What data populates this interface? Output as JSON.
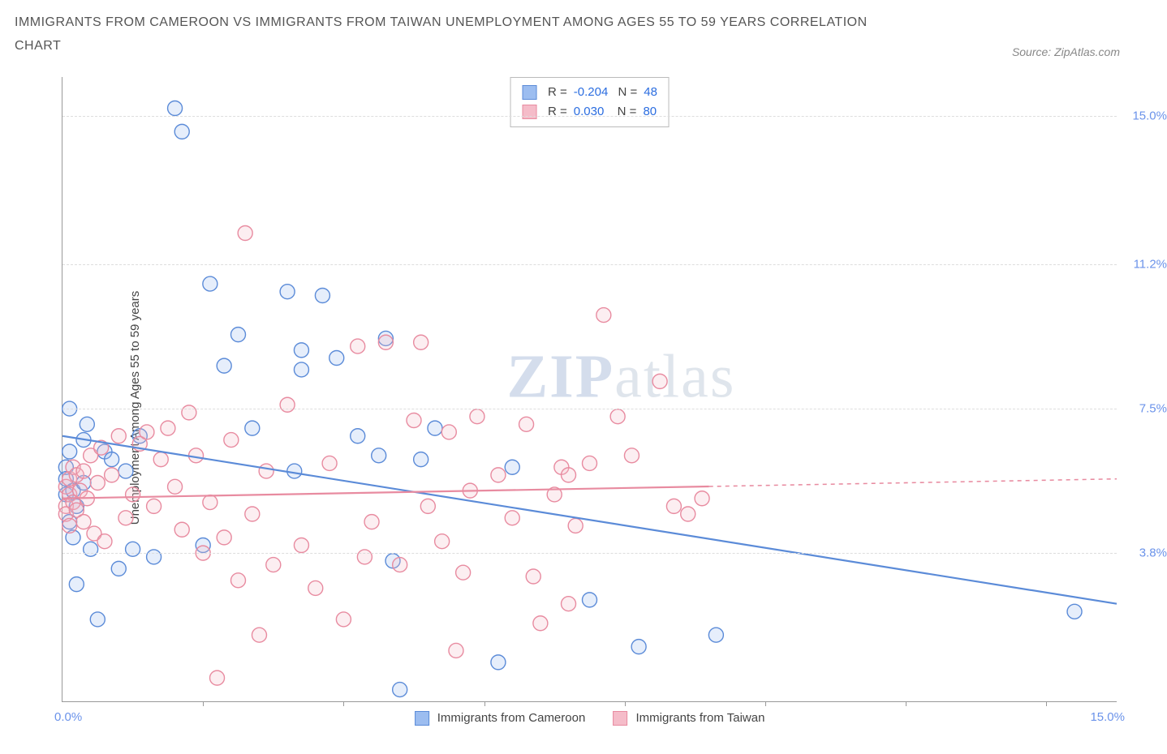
{
  "title": "IMMIGRANTS FROM CAMEROON VS IMMIGRANTS FROM TAIWAN UNEMPLOYMENT AMONG AGES 55 TO 59 YEARS CORRELATION CHART",
  "source": "Source: ZipAtlas.com",
  "ylabel": "Unemployment Among Ages 55 to 59 years",
  "watermark_primary": "ZIP",
  "watermark_secondary": "atlas",
  "chart": {
    "type": "scatter",
    "xlim": [
      0,
      15
    ],
    "ylim": [
      0,
      16
    ],
    "x_min_label": "0.0%",
    "x_max_label": "15.0%",
    "y_ticks": [
      3.8,
      7.5,
      11.2,
      15.0
    ],
    "y_tick_labels": [
      "3.8%",
      "7.5%",
      "11.2%",
      "15.0%"
    ],
    "x_tick_positions": [
      2,
      4,
      6,
      8,
      10,
      12,
      14
    ],
    "grid_color": "#dddddd",
    "background_color": "#ffffff",
    "axis_color": "#999999",
    "marker_radius": 9,
    "marker_stroke_width": 1.4,
    "fill_opacity": 0.25,
    "series": [
      {
        "name": "Immigrants from Cameroon",
        "legend_label": "Immigrants from Cameroon",
        "color_stroke": "#5b8bd8",
        "color_fill": "#9cbdf0",
        "R": "-0.204",
        "N": "48",
        "trend": {
          "x1": 0,
          "y1": 6.8,
          "x2": 15,
          "y2": 2.5,
          "solid_until_x": 15,
          "stroke_width": 2.2
        },
        "points": [
          [
            0.05,
            6.0
          ],
          [
            0.05,
            5.3
          ],
          [
            0.05,
            5.7
          ],
          [
            0.1,
            7.5
          ],
          [
            0.1,
            4.6
          ],
          [
            0.1,
            6.4
          ],
          [
            0.15,
            5.4
          ],
          [
            0.15,
            4.2
          ],
          [
            0.2,
            5.0
          ],
          [
            0.2,
            3.0
          ],
          [
            0.3,
            6.7
          ],
          [
            0.3,
            5.6
          ],
          [
            0.35,
            7.1
          ],
          [
            0.4,
            3.9
          ],
          [
            0.5,
            2.1
          ],
          [
            0.6,
            6.4
          ],
          [
            0.7,
            6.2
          ],
          [
            0.8,
            3.4
          ],
          [
            0.9,
            5.9
          ],
          [
            1.0,
            3.9
          ],
          [
            1.1,
            6.8
          ],
          [
            1.3,
            3.7
          ],
          [
            1.6,
            15.2
          ],
          [
            1.7,
            14.6
          ],
          [
            2.0,
            4.0
          ],
          [
            2.1,
            10.7
          ],
          [
            2.3,
            8.6
          ],
          [
            2.5,
            9.4
          ],
          [
            2.7,
            7.0
          ],
          [
            3.2,
            10.5
          ],
          [
            3.3,
            5.9
          ],
          [
            3.4,
            9.0
          ],
          [
            3.4,
            8.5
          ],
          [
            3.7,
            10.4
          ],
          [
            3.9,
            8.8
          ],
          [
            4.2,
            6.8
          ],
          [
            4.5,
            6.3
          ],
          [
            4.6,
            9.3
          ],
          [
            4.7,
            3.6
          ],
          [
            4.8,
            0.3
          ],
          [
            5.1,
            6.2
          ],
          [
            5.3,
            7.0
          ],
          [
            6.2,
            1.0
          ],
          [
            6.4,
            6.0
          ],
          [
            7.5,
            2.6
          ],
          [
            8.2,
            1.4
          ],
          [
            9.3,
            1.7
          ],
          [
            14.4,
            2.3
          ]
        ]
      },
      {
        "name": "Immigrants from Taiwan",
        "legend_label": "Immigrants from Taiwan",
        "color_stroke": "#e88ba0",
        "color_fill": "#f5bcc9",
        "R": "0.030",
        "N": "80",
        "trend": {
          "x1": 0,
          "y1": 5.2,
          "x2": 15,
          "y2": 5.7,
          "solid_until_x": 9.2,
          "stroke_width": 2.2
        },
        "points": [
          [
            0.05,
            5.5
          ],
          [
            0.05,
            5.0
          ],
          [
            0.05,
            4.8
          ],
          [
            0.1,
            5.7
          ],
          [
            0.1,
            5.3
          ],
          [
            0.1,
            4.5
          ],
          [
            0.15,
            6.0
          ],
          [
            0.15,
            5.1
          ],
          [
            0.2,
            5.8
          ],
          [
            0.2,
            4.9
          ],
          [
            0.25,
            5.4
          ],
          [
            0.3,
            5.9
          ],
          [
            0.3,
            4.6
          ],
          [
            0.35,
            5.2
          ],
          [
            0.4,
            6.3
          ],
          [
            0.45,
            4.3
          ],
          [
            0.5,
            5.6
          ],
          [
            0.55,
            6.5
          ],
          [
            0.6,
            4.1
          ],
          [
            0.7,
            5.8
          ],
          [
            0.8,
            6.8
          ],
          [
            0.9,
            4.7
          ],
          [
            1.0,
            5.3
          ],
          [
            1.1,
            6.6
          ],
          [
            1.2,
            6.9
          ],
          [
            1.3,
            5.0
          ],
          [
            1.4,
            6.2
          ],
          [
            1.5,
            7.0
          ],
          [
            1.6,
            5.5
          ],
          [
            1.7,
            4.4
          ],
          [
            1.8,
            7.4
          ],
          [
            1.9,
            6.3
          ],
          [
            2.0,
            3.8
          ],
          [
            2.1,
            5.1
          ],
          [
            2.2,
            0.6
          ],
          [
            2.3,
            4.2
          ],
          [
            2.4,
            6.7
          ],
          [
            2.5,
            3.1
          ],
          [
            2.6,
            12.0
          ],
          [
            2.7,
            4.8
          ],
          [
            2.8,
            1.7
          ],
          [
            2.9,
            5.9
          ],
          [
            3.0,
            3.5
          ],
          [
            3.2,
            7.6
          ],
          [
            3.4,
            4.0
          ],
          [
            3.6,
            2.9
          ],
          [
            3.8,
            6.1
          ],
          [
            4.0,
            2.1
          ],
          [
            4.2,
            9.1
          ],
          [
            4.4,
            4.6
          ],
          [
            4.6,
            9.2
          ],
          [
            4.8,
            3.5
          ],
          [
            5.0,
            7.2
          ],
          [
            5.1,
            9.2
          ],
          [
            5.2,
            5.0
          ],
          [
            5.4,
            4.1
          ],
          [
            5.5,
            6.9
          ],
          [
            5.6,
            1.3
          ],
          [
            5.8,
            5.4
          ],
          [
            5.9,
            7.3
          ],
          [
            6.2,
            5.8
          ],
          [
            6.4,
            4.7
          ],
          [
            6.6,
            7.1
          ],
          [
            6.7,
            3.2
          ],
          [
            6.8,
            2.0
          ],
          [
            7.0,
            5.3
          ],
          [
            7.1,
            6.0
          ],
          [
            7.2,
            5.8
          ],
          [
            7.3,
            4.5
          ],
          [
            7.5,
            6.1
          ],
          [
            7.7,
            9.9
          ],
          [
            7.9,
            7.3
          ],
          [
            8.1,
            6.3
          ],
          [
            8.5,
            8.2
          ],
          [
            8.7,
            5.0
          ],
          [
            8.9,
            4.8
          ],
          [
            9.1,
            5.2
          ],
          [
            7.2,
            2.5
          ],
          [
            4.3,
            3.7
          ],
          [
            5.7,
            3.3
          ]
        ]
      }
    ]
  }
}
